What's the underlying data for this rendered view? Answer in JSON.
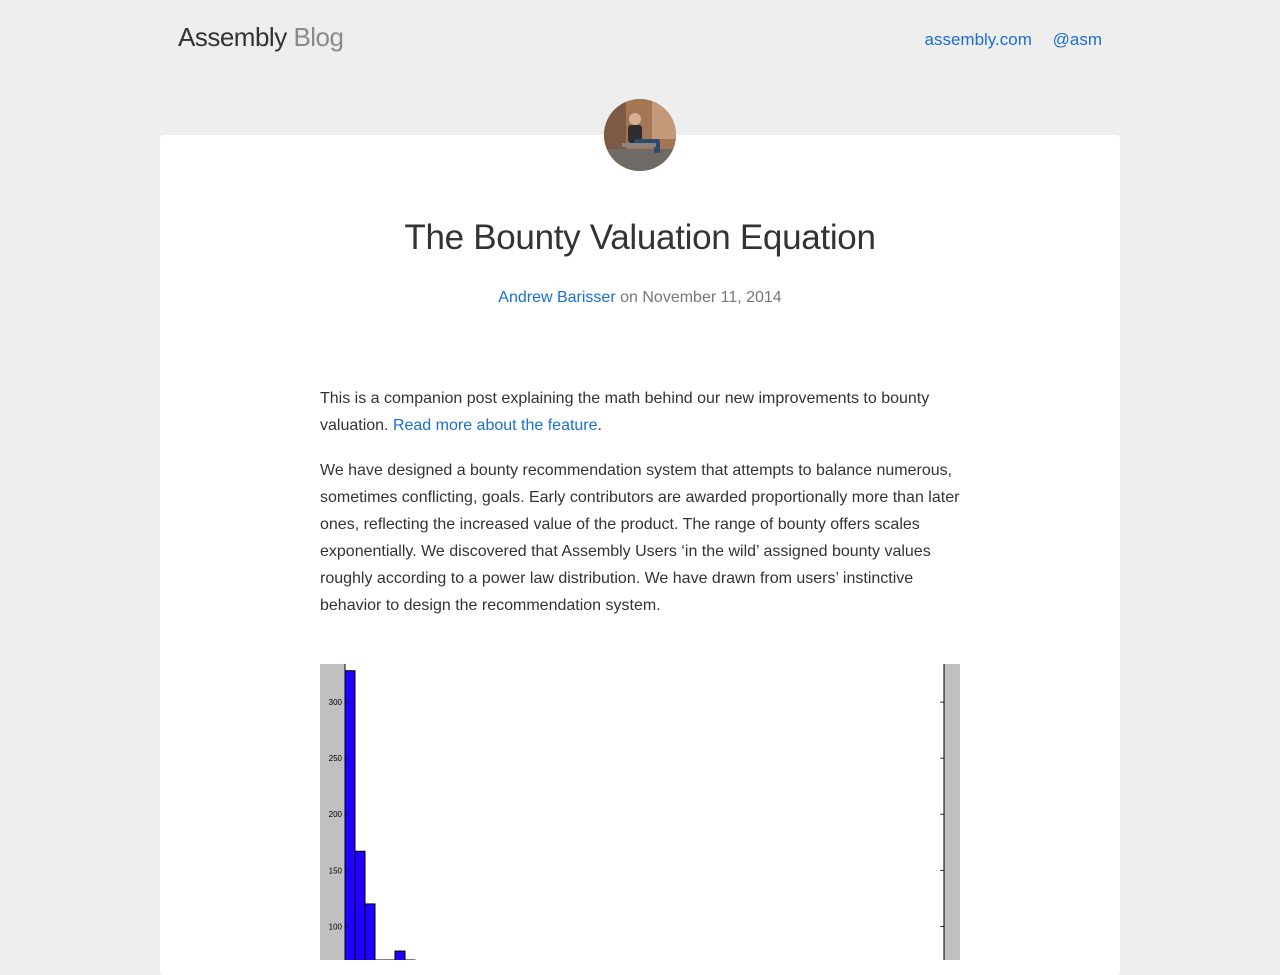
{
  "header": {
    "brand_main": "Assembly",
    "brand_sub": "Blog",
    "nav": [
      {
        "label": "assembly.com"
      },
      {
        "label": "@asm"
      }
    ]
  },
  "post": {
    "title": "The Bounty Valuation Equation",
    "author": "Andrew Barisser",
    "on": "on",
    "date": "November 11, 2014",
    "p1_text": "This is a companion post explaining the math behind our new improvements to bounty valuation.",
    "p1_link": "Read more about the feature",
    "p1_end": ".",
    "p2_text": "We have designed a bounty recommendation system that attempts to balance numerous, sometimes conflicting, goals. Early contributors are awarded proportionally more than later ones, reflecting the increased value of the product. The range of bounty offers scales exponentially. We discovered that Assembly Users ‘in the wild’ assigned bounty values roughly according to a power law distribution. We have drawn from users’ instinctive behavior to design the recommendation system."
  },
  "chart_data": {
    "type": "bar",
    "ylim": [
      70,
      334
    ],
    "yticks": [
      100,
      150,
      200,
      250,
      300
    ],
    "ytick_labels": [
      "100",
      "150",
      "200",
      "250",
      "300"
    ],
    "values": [
      328,
      167,
      120,
      70,
      70,
      78,
      70
    ],
    "bar_color": "#2200ff",
    "background": "#c0c0c0"
  }
}
